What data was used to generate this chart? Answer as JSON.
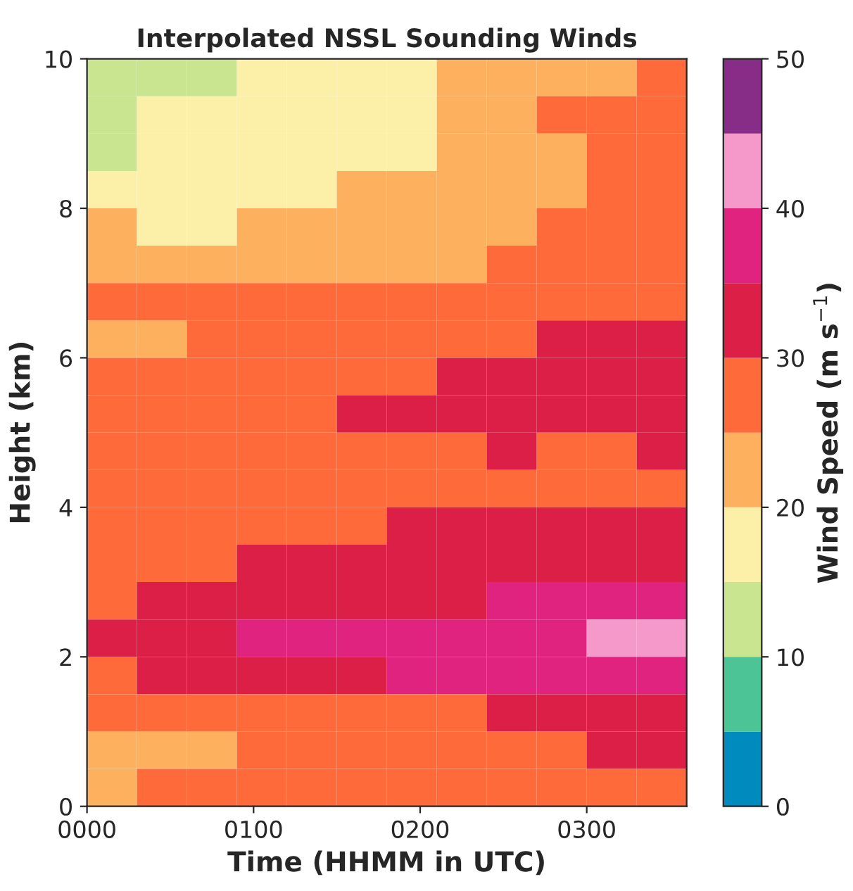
{
  "chart_data": {
    "type": "heatmap",
    "title": "Interpolated NSSL Sounding Winds",
    "xlabel": "Time (HHMM in UTC)",
    "ylabel": "Height (km)",
    "clabel": "Wind Speed (m s$^{−1}$)",
    "xlim": [
      0,
      360
    ],
    "xticks": [
      {
        "value": 0,
        "label": "0000"
      },
      {
        "value": 100,
        "label": "0100"
      },
      {
        "value": 200,
        "label": "0200"
      },
      {
        "value": 300,
        "label": "0300"
      }
    ],
    "ylim": [
      0,
      10
    ],
    "yticks": [
      0,
      2,
      4,
      6,
      8,
      10
    ],
    "clim": [
      0,
      50
    ],
    "cticks": [
      0,
      10,
      20,
      30,
      40,
      50
    ],
    "colors": [
      "#008bbf",
      "#4cc495",
      "#c9e58f",
      "#fcefa8",
      "#fdb05e",
      "#fe6a3a",
      "#db1f47",
      "#e0237f",
      "#f499c9",
      "#872c87"
    ],
    "x": [
      15,
      45,
      75,
      105,
      135,
      165,
      195,
      225,
      255,
      285,
      315,
      345
    ],
    "y": [
      9.75,
      9.25,
      8.75,
      8.25,
      7.75,
      7.25,
      6.75,
      6.25,
      5.75,
      5.25,
      4.75,
      4.25,
      3.75,
      3.25,
      2.75,
      2.25,
      1.75,
      1.25,
      0.75,
      0.25
    ],
    "cells": [
      [
        12.5,
        12.5,
        12.5,
        17.5,
        17.5,
        17.5,
        17.5,
        22.5,
        22.5,
        22.5,
        22.5,
        27.5
      ],
      [
        12.5,
        17.5,
        17.5,
        17.5,
        17.5,
        17.5,
        17.5,
        22.5,
        22.5,
        27.5,
        27.5,
        27.5
      ],
      [
        12.5,
        17.5,
        17.5,
        17.5,
        17.5,
        17.5,
        17.5,
        22.5,
        22.5,
        22.5,
        27.5,
        27.5
      ],
      [
        17.5,
        17.5,
        17.5,
        17.5,
        17.5,
        22.5,
        22.5,
        22.5,
        22.5,
        22.5,
        27.5,
        27.5
      ],
      [
        22.5,
        17.5,
        17.5,
        22.5,
        22.5,
        22.5,
        22.5,
        22.5,
        22.5,
        27.5,
        27.5,
        27.5
      ],
      [
        22.5,
        22.5,
        22.5,
        22.5,
        22.5,
        22.5,
        22.5,
        22.5,
        27.5,
        27.5,
        27.5,
        27.5
      ],
      [
        27.5,
        27.5,
        27.5,
        27.5,
        27.5,
        27.5,
        27.5,
        27.5,
        27.5,
        27.5,
        27.5,
        27.5
      ],
      [
        22.5,
        22.5,
        27.5,
        27.5,
        27.5,
        27.5,
        27.5,
        27.5,
        27.5,
        32.5,
        32.5,
        32.5
      ],
      [
        27.5,
        27.5,
        27.5,
        27.5,
        27.5,
        27.5,
        27.5,
        32.5,
        32.5,
        32.5,
        32.5,
        32.5
      ],
      [
        27.5,
        27.5,
        27.5,
        27.5,
        27.5,
        32.5,
        32.5,
        32.5,
        32.5,
        32.5,
        32.5,
        32.5
      ],
      [
        27.5,
        27.5,
        27.5,
        27.5,
        27.5,
        27.5,
        27.5,
        27.5,
        32.5,
        27.5,
        27.5,
        32.5
      ],
      [
        27.5,
        27.5,
        27.5,
        27.5,
        27.5,
        27.5,
        27.5,
        27.5,
        27.5,
        27.5,
        27.5,
        27.5
      ],
      [
        27.5,
        27.5,
        27.5,
        27.5,
        27.5,
        27.5,
        32.5,
        32.5,
        32.5,
        32.5,
        32.5,
        32.5
      ],
      [
        27.5,
        27.5,
        27.5,
        32.5,
        32.5,
        32.5,
        32.5,
        32.5,
        32.5,
        32.5,
        32.5,
        32.5
      ],
      [
        27.5,
        32.5,
        32.5,
        32.5,
        32.5,
        32.5,
        32.5,
        32.5,
        37.5,
        37.5,
        37.5,
        37.5
      ],
      [
        32.5,
        32.5,
        32.5,
        37.5,
        37.5,
        37.5,
        37.5,
        37.5,
        37.5,
        37.5,
        42.5,
        42.5
      ],
      [
        27.5,
        32.5,
        32.5,
        32.5,
        32.5,
        32.5,
        37.5,
        37.5,
        37.5,
        37.5,
        37.5,
        37.5
      ],
      [
        27.5,
        27.5,
        27.5,
        27.5,
        27.5,
        27.5,
        27.5,
        27.5,
        32.5,
        32.5,
        32.5,
        32.5
      ],
      [
        22.5,
        22.5,
        22.5,
        27.5,
        27.5,
        27.5,
        27.5,
        27.5,
        27.5,
        27.5,
        32.5,
        32.5
      ],
      [
        22.5,
        27.5,
        27.5,
        27.5,
        27.5,
        27.5,
        27.5,
        27.5,
        27.5,
        27.5,
        27.5,
        27.5
      ]
    ]
  }
}
